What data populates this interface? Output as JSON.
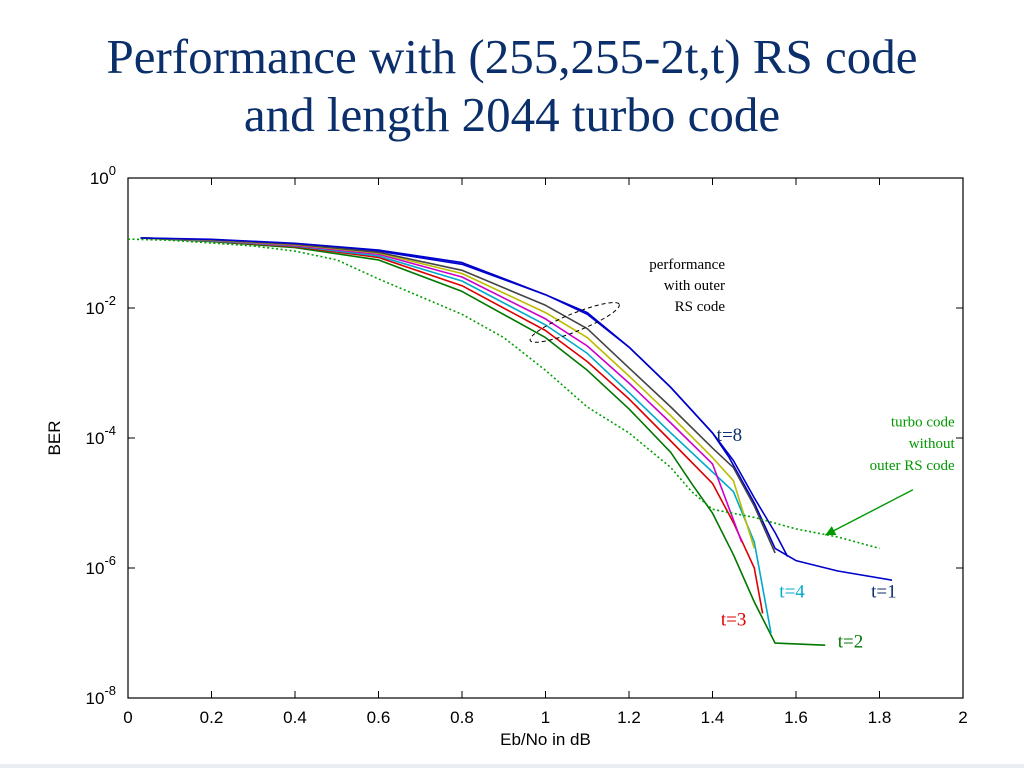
{
  "slide": {
    "title_line1": "Performance with (255,255-2t,t) RS code",
    "title_line2": "and length 2044 turbo code"
  },
  "chart_data": {
    "type": "line",
    "xlabel": "Eb/No in dB",
    "ylabel": "BER",
    "xlim": [
      0,
      2
    ],
    "ylim": [
      1e-08,
      1
    ],
    "yscale": "log",
    "xticks": [
      "0",
      "0.2",
      "0.4",
      "0.6",
      "0.8",
      "1",
      "1.2",
      "1.4",
      "1.6",
      "1.8",
      "2"
    ],
    "yticks": [
      {
        "base": "10",
        "exp": "0"
      },
      {
        "base": "10",
        "exp": "-2"
      },
      {
        "base": "10",
        "exp": "-4"
      },
      {
        "base": "10",
        "exp": "-6"
      },
      {
        "base": "10",
        "exp": "-8"
      }
    ],
    "series": [
      {
        "color": "#0000cc",
        "dash": false,
        "points": [
          [
            0.03,
            0.12
          ],
          [
            0.2,
            0.11
          ],
          [
            0.4,
            0.095
          ],
          [
            0.6,
            0.075
          ],
          [
            0.8,
            0.047
          ],
          [
            1.0,
            0.016
          ],
          [
            1.1,
            0.0085
          ],
          [
            1.2,
            0.0025
          ],
          [
            1.3,
            0.0006
          ],
          [
            1.4,
            0.00012
          ],
          [
            1.44,
            5e-05
          ],
          [
            1.5,
            1e-05
          ],
          [
            1.55,
            2e-06
          ],
          [
            1.6,
            1.3e-06
          ],
          [
            1.7,
            9e-07
          ],
          [
            1.83,
            6.5e-07
          ]
        ]
      },
      {
        "color": "#007700",
        "dash": false,
        "points": [
          [
            0.03,
            0.12
          ],
          [
            0.2,
            0.105
          ],
          [
            0.4,
            0.085
          ],
          [
            0.6,
            0.055
          ],
          [
            0.8,
            0.018
          ],
          [
            1.0,
            0.0035
          ],
          [
            1.1,
            0.0011
          ],
          [
            1.2,
            0.00028
          ],
          [
            1.3,
            6e-05
          ],
          [
            1.35,
            2e-05
          ],
          [
            1.4,
            7e-06
          ],
          [
            1.45,
            1.6e-06
          ],
          [
            1.5,
            3e-07
          ],
          [
            1.55,
            7e-08
          ],
          [
            1.67,
            6.5e-08
          ]
        ]
      },
      {
        "color": "#dd0000",
        "dash": false,
        "points": [
          [
            0.03,
            0.12
          ],
          [
            0.2,
            0.107
          ],
          [
            0.4,
            0.088
          ],
          [
            0.6,
            0.06
          ],
          [
            0.8,
            0.022
          ],
          [
            1.0,
            0.0045
          ],
          [
            1.1,
            0.0015
          ],
          [
            1.2,
            0.0004
          ],
          [
            1.3,
            9e-05
          ],
          [
            1.4,
            2e-05
          ],
          [
            1.45,
            5e-06
          ],
          [
            1.5,
            1e-06
          ],
          [
            1.52,
            2e-07
          ]
        ]
      },
      {
        "color": "#00aacc",
        "dash": false,
        "points": [
          [
            0.03,
            0.12
          ],
          [
            0.2,
            0.108
          ],
          [
            0.4,
            0.09
          ],
          [
            0.6,
            0.063
          ],
          [
            0.8,
            0.026
          ],
          [
            1.0,
            0.0055
          ],
          [
            1.1,
            0.002
          ],
          [
            1.2,
            0.0005
          ],
          [
            1.3,
            0.00012
          ],
          [
            1.4,
            3e-05
          ],
          [
            1.45,
            1.5e-05
          ],
          [
            1.5,
            2.5e-06
          ],
          [
            1.54,
            1e-07
          ]
        ]
      },
      {
        "color": "#cc00cc",
        "dash": false,
        "points": [
          [
            0.03,
            0.12
          ],
          [
            0.2,
            0.11
          ],
          [
            0.4,
            0.092
          ],
          [
            0.6,
            0.067
          ],
          [
            0.8,
            0.03
          ],
          [
            1.0,
            0.0068
          ],
          [
            1.1,
            0.0026
          ],
          [
            1.2,
            0.0007
          ],
          [
            1.3,
            0.00017
          ],
          [
            1.4,
            4e-05
          ],
          [
            1.47,
            2.5e-06
          ]
        ]
      },
      {
        "color": "#bbbb00",
        "dash": false,
        "points": [
          [
            0.03,
            0.12
          ],
          [
            0.2,
            0.111
          ],
          [
            0.4,
            0.094
          ],
          [
            0.6,
            0.07
          ],
          [
            0.8,
            0.034
          ],
          [
            1.0,
            0.0085
          ],
          [
            1.1,
            0.0035
          ],
          [
            1.2,
            0.0009
          ],
          [
            1.3,
            0.00022
          ],
          [
            1.4,
            5e-05
          ],
          [
            1.45,
            2.2e-05
          ],
          [
            1.5,
            2e-06
          ]
        ]
      },
      {
        "color": "#444444",
        "dash": false,
        "points": [
          [
            0.03,
            0.12
          ],
          [
            0.2,
            0.112
          ],
          [
            0.4,
            0.096
          ],
          [
            0.6,
            0.072
          ],
          [
            0.8,
            0.038
          ],
          [
            1.0,
            0.011
          ],
          [
            1.1,
            0.0048
          ],
          [
            1.2,
            0.0012
          ],
          [
            1.3,
            0.0003
          ],
          [
            1.4,
            7e-05
          ],
          [
            1.45,
            3.5e-05
          ],
          [
            1.5,
            9e-06
          ],
          [
            1.55,
            1.7e-06
          ]
        ]
      },
      {
        "color": "#0000cc",
        "dash": false,
        "points": [
          [
            0.03,
            0.12
          ],
          [
            0.2,
            0.114
          ],
          [
            0.4,
            0.099
          ],
          [
            0.6,
            0.078
          ],
          [
            0.8,
            0.05
          ],
          [
            1.0,
            0.016
          ],
          [
            1.1,
            0.008
          ],
          [
            1.2,
            0.0025
          ],
          [
            1.3,
            0.0006
          ],
          [
            1.4,
            0.00012
          ],
          [
            1.45,
            4.5e-05
          ],
          [
            1.5,
            1.2e-05
          ],
          [
            1.55,
            3.5e-06
          ],
          [
            1.58,
            1.5e-06
          ]
        ]
      },
      {
        "color": "#00a000",
        "dash": true,
        "points": [
          [
            0.0,
            0.115
          ],
          [
            0.1,
            0.11
          ],
          [
            0.2,
            0.1
          ],
          [
            0.3,
            0.09
          ],
          [
            0.4,
            0.075
          ],
          [
            0.5,
            0.055
          ],
          [
            0.6,
            0.028
          ],
          [
            0.7,
            0.015
          ],
          [
            0.8,
            0.008
          ],
          [
            0.9,
            0.0035
          ],
          [
            1.0,
            0.0011
          ],
          [
            1.1,
            0.0003
          ],
          [
            1.2,
            0.00012
          ],
          [
            1.3,
            3.5e-05
          ],
          [
            1.35,
            1.5e-05
          ],
          [
            1.4,
            8e-06
          ],
          [
            1.5,
            6e-06
          ],
          [
            1.6,
            4e-06
          ],
          [
            1.7,
            3e-06
          ],
          [
            1.8,
            2e-06
          ]
        ]
      }
    ],
    "annotations": [
      {
        "id": "t8",
        "text": "t=8",
        "color": "#0b2f6b",
        "x": 1.41,
        "y": 9e-05
      },
      {
        "id": "t4",
        "text": "t=4",
        "color": "#00aacc",
        "x": 1.56,
        "y": 3.5e-07
      },
      {
        "id": "t1",
        "text": "t=1",
        "color": "#0b2f6b",
        "x": 1.78,
        "y": 3.5e-07
      },
      {
        "id": "t3",
        "text": "t=3",
        "color": "#dd0000",
        "x": 1.42,
        "y": 1.3e-07
      },
      {
        "id": "t2",
        "text": "t=2",
        "color": "#007700",
        "x": 1.7,
        "y": 6e-08
      },
      {
        "id": "perf-1",
        "text": "performance",
        "color": "#000000",
        "x": 1.43,
        "y": 0.04
      },
      {
        "id": "perf-2",
        "text": "with outer",
        "color": "#000000",
        "x": 1.43,
        "y": 0.019
      },
      {
        "id": "perf-3",
        "text": "RS code",
        "color": "#000000",
        "x": 1.43,
        "y": 0.009
      },
      {
        "id": "tc-1",
        "text": "turbo code",
        "color": "#009900",
        "x": 1.98,
        "y": 0.00015
      },
      {
        "id": "tc-2",
        "text": "without",
        "color": "#009900",
        "x": 1.98,
        "y": 7e-05
      },
      {
        "id": "tc-3",
        "text": "outer RS code",
        "color": "#009900",
        "x": 1.98,
        "y": 3.2e-05
      }
    ]
  }
}
